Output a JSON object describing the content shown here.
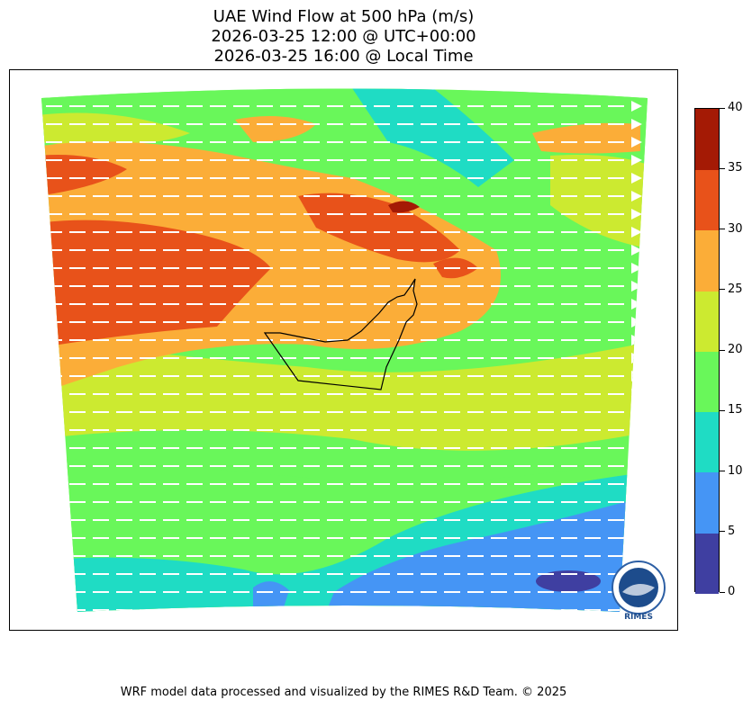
{
  "title": {
    "line1": "UAE Wind Flow at 500 hPa (m/s)",
    "line2": "2026-03-25 12:00 @ UTC+00:00",
    "line3": "2026-03-25 16:00 @ Local Time"
  },
  "colorbar": {
    "ticks": [
      "0",
      "5",
      "10",
      "15",
      "20",
      "25",
      "30",
      "35",
      "40"
    ],
    "colors": [
      "#3f3fa1",
      "#4595f5",
      "#1fdcc4",
      "#69f75a",
      "#ccea30",
      "#fbad38",
      "#e8521a",
      "#a41a05"
    ]
  },
  "logo": {
    "text": "RIMES"
  },
  "footer": "WRF model data processed and visualized by the RIMES R&D Team. © 2025"
}
